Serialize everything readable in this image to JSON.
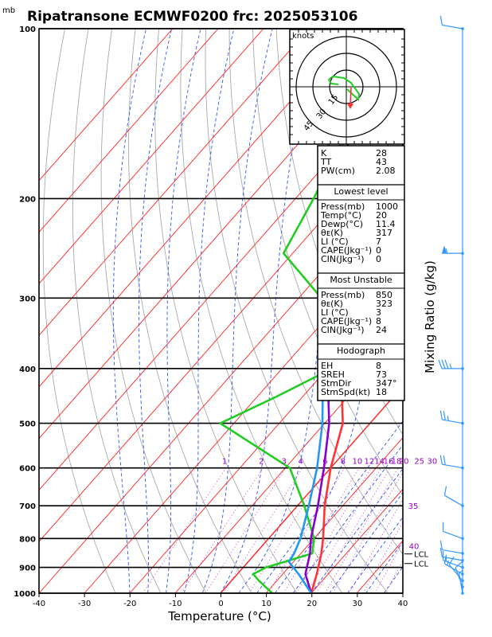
{
  "header": {
    "unit_label": "mb",
    "title": "Ripatransone ECMWF0200  frc: 2025053106"
  },
  "colors": {
    "temperature": "#ff3333",
    "dewpoint": "#22cc22",
    "virtual_temperature": "#8800cc",
    "parcel": "#2299ee",
    "isotherm": "#ff2222",
    "dry_adiabat": "#aaaaaa",
    "moist_adiabat": "#3355ee",
    "mixing_ratio": "#cc33cc",
    "wind_barb": "#3399ff"
  },
  "chart_data": {
    "type": "line",
    "title": "Ripatransone ECMWF0200  frc: 2025053106",
    "xlabel": "Temperature (°C)",
    "ylabel": "mb",
    "right_label": "Mixing Ratio (g/kg)",
    "x_ticks": [
      -40,
      -30,
      -20,
      -10,
      0,
      10,
      20,
      30,
      40
    ],
    "pressure_levels": [
      1000,
      900,
      800,
      700,
      600,
      500,
      400,
      300,
      200,
      100
    ],
    "pressure_tick_labels": [
      "1000",
      "900",
      "800",
      "700",
      "600",
      "500",
      "400",
      "300",
      "200",
      "100"
    ],
    "xlim": [
      -40,
      40
    ],
    "ylim": [
      1000,
      100
    ],
    "y_scale": "log",
    "grid": true,
    "mixing_ratio_labels": [
      "1",
      "2",
      "3",
      "4",
      "6",
      "8",
      "10",
      "12",
      "14",
      "16",
      "18",
      "20",
      "25",
      "30",
      "35",
      "40"
    ],
    "lcl_labels": [
      "LCL",
      "LCL"
    ],
    "series": [
      {
        "name": "temperature",
        "points": [
          [
            1000,
            20
          ],
          [
            925,
            17.5
          ],
          [
            850,
            14.5
          ],
          [
            800,
            12
          ],
          [
            700,
            6
          ],
          [
            600,
            0
          ],
          [
            500,
            -6
          ],
          [
            400,
            -17
          ],
          [
            300,
            -29
          ],
          [
            250,
            -39
          ],
          [
            200,
            -32
          ],
          [
            150,
            -22
          ],
          [
            100,
            -11
          ]
        ]
      },
      {
        "name": "dewpoint",
        "points": [
          [
            1000,
            11.4
          ],
          [
            950,
            6
          ],
          [
            925,
            3.5
          ],
          [
            900,
            5
          ],
          [
            850,
            12.5
          ],
          [
            800,
            10
          ],
          [
            700,
            1.5
          ],
          [
            600,
            -9
          ],
          [
            500,
            -33
          ],
          [
            450,
            -26
          ],
          [
            400,
            -19
          ],
          [
            300,
            -35
          ],
          [
            250,
            -52
          ],
          [
            200,
            -56
          ],
          [
            150,
            -62
          ],
          [
            100,
            -72
          ]
        ]
      },
      {
        "name": "virtual temperature",
        "points": [
          [
            1000,
            20
          ],
          [
            925,
            15
          ],
          [
            850,
            12
          ],
          [
            800,
            9.3
          ],
          [
            700,
            4.5
          ],
          [
            600,
            -1.5
          ],
          [
            500,
            -9
          ],
          [
            400,
            -20
          ],
          [
            300,
            -32
          ],
          [
            200,
            -49
          ],
          [
            150,
            -62
          ],
          [
            110,
            -73
          ]
        ]
      },
      {
        "name": "parcel",
        "points": [
          [
            1000,
            20
          ],
          [
            925,
            13.5
          ],
          [
            880,
            9
          ],
          [
            850,
            8.5
          ],
          [
            800,
            7
          ],
          [
            700,
            2.5
          ],
          [
            600,
            -3
          ],
          [
            500,
            -10.5
          ],
          [
            400,
            -21
          ],
          [
            300,
            -35
          ],
          [
            200,
            -54
          ],
          [
            150,
            -66
          ],
          [
            100,
            -82
          ]
        ]
      }
    ]
  },
  "hodograph": {
    "units_label": "knots",
    "ring_labels": [
      "15",
      "30",
      "45"
    ]
  },
  "stats": {
    "indices": [
      {
        "label": "K",
        "value": "28"
      },
      {
        "label": "TT",
        "value": "43"
      },
      {
        "label": "PW(cm)",
        "value": "2.08"
      }
    ],
    "lowest": {
      "header": "Lowest level",
      "rows": [
        {
          "label": "Press(mb)",
          "value": "1000"
        },
        {
          "label": "Temp(°C)",
          "value": "20"
        },
        {
          "label": "Dewp(°C)",
          "value": "11.4"
        },
        {
          "label": "θᴇ(K)",
          "value": "317"
        },
        {
          "label": "LI (°C)",
          "value": "7"
        },
        {
          "label": "CAPE(Jkg⁻¹)",
          "value": "0"
        },
        {
          "label": "CIN(Jkg⁻¹)",
          "value": "0"
        }
      ]
    },
    "unstable": {
      "header": "Most Unstable",
      "rows": [
        {
          "label": "Press(mb)",
          "value": "850"
        },
        {
          "label": "θᴇ(K)",
          "value": "323"
        },
        {
          "label": "LI (°C)",
          "value": "3"
        },
        {
          "label": "CAPE(Jkg⁻¹)",
          "value": "8"
        },
        {
          "label": "CIN(Jkg⁻¹)",
          "value": "24"
        }
      ]
    },
    "hodo": {
      "header": "Hodograph",
      "rows": [
        {
          "label": "EH",
          "value": "8"
        },
        {
          "label": "SREH",
          "value": "73"
        },
        {
          "label": "StmDir",
          "value": "347°"
        },
        {
          "label": "StmSpd(kt)",
          "value": "18"
        }
      ]
    }
  },
  "winds": [
    {
      "p": 1000,
      "dir": 350,
      "spd": 7
    },
    {
      "p": 975,
      "dir": 340,
      "spd": 8
    },
    {
      "p": 950,
      "dir": 320,
      "spd": 12
    },
    {
      "p": 925,
      "dir": 300,
      "spd": 15
    },
    {
      "p": 900,
      "dir": 290,
      "spd": 14
    },
    {
      "p": 875,
      "dir": 280,
      "spd": 12
    },
    {
      "p": 850,
      "dir": 280,
      "spd": 10
    },
    {
      "p": 800,
      "dir": 290,
      "spd": 8
    },
    {
      "p": 700,
      "dir": 300,
      "spd": 10
    },
    {
      "p": 600,
      "dir": 280,
      "spd": 22
    },
    {
      "p": 500,
      "dir": 280,
      "spd": 27
    },
    {
      "p": 400,
      "dir": 270,
      "spd": 35
    },
    {
      "p": 250,
      "dir": 270,
      "spd": 55
    },
    {
      "p": 100,
      "dir": 280,
      "spd": 12
    }
  ]
}
